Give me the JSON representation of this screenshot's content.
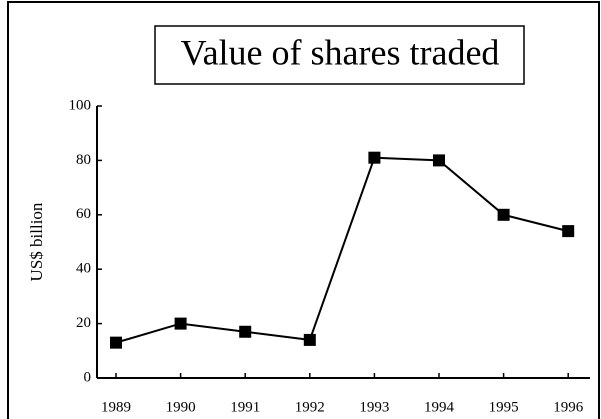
{
  "chart_data": {
    "type": "line",
    "title": "Value of shares traded",
    "y_label": "US$ billion",
    "categories": [
      "1989",
      "1990",
      "1991",
      "1992",
      "1993",
      "1994",
      "1995",
      "1996"
    ],
    "series": [
      {
        "color": "#000000",
        "values": [
          13,
          20,
          17,
          14,
          81,
          80,
          60,
          54
        ]
      }
    ],
    "ylim": [
      0,
      100
    ],
    "yticks": [
      0,
      20,
      40,
      60,
      80,
      100
    ]
  }
}
